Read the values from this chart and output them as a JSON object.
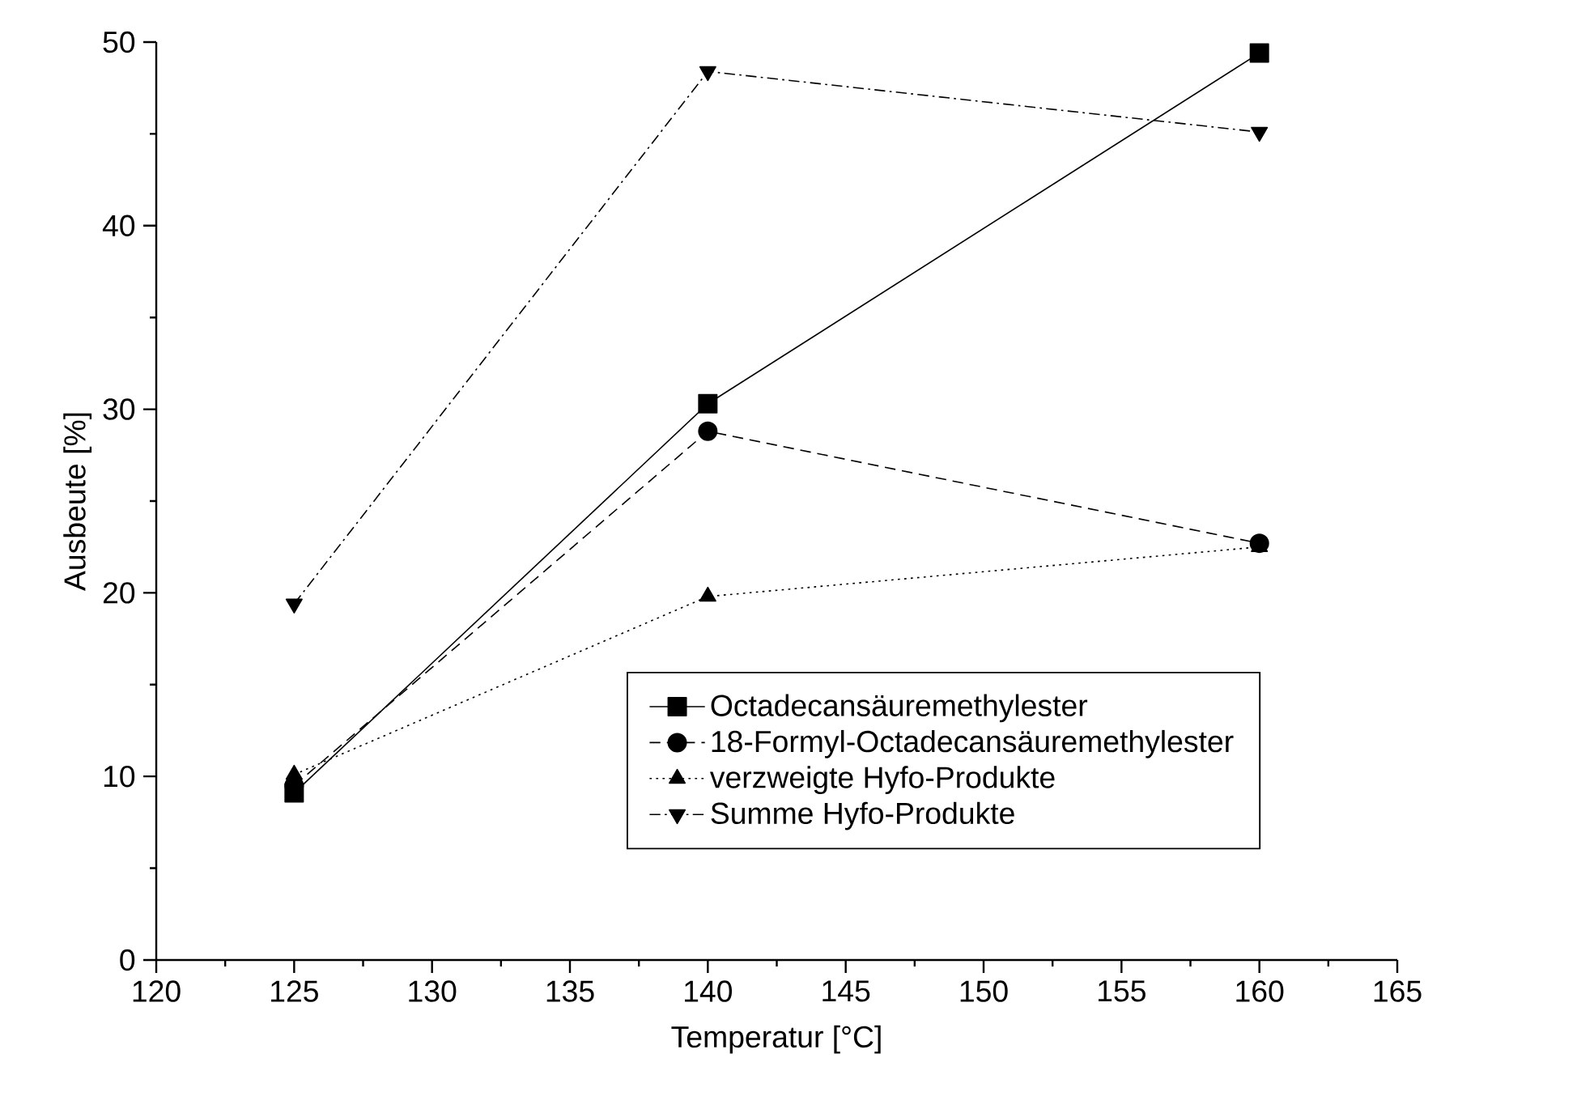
{
  "chart_data": {
    "type": "line",
    "xlabel": "Temperatur [°C]",
    "ylabel": "Ausbeute [%]",
    "x": [
      125,
      140,
      160
    ],
    "series": [
      {
        "name": "Octadecansäuremethylester",
        "color": "#000000",
        "values": [
          9.1,
          30.3,
          49.4
        ],
        "marker": "square",
        "line_style": "solid"
      },
      {
        "name": "18-Formyl-Octadecansäuremethylester",
        "color": "#000000",
        "values": [
          9.5,
          28.8,
          22.7
        ],
        "marker": "circle",
        "line_style": "dashed"
      },
      {
        "name": "verzweigte Hyfo-Produkte",
        "color": "#000000",
        "values": [
          10.1,
          19.8,
          22.5
        ],
        "marker": "triangle",
        "line_style": "dotted"
      },
      {
        "name": "Summe Hyfo-Produkte",
        "color": "#000000",
        "values": [
          19.4,
          48.4,
          45.1
        ],
        "marker": "triangle down",
        "line_style": "dashdotted"
      }
    ],
    "xlim": [
      120,
      165
    ],
    "ylim": [
      0,
      50
    ],
    "xticks": [
      120,
      125,
      130,
      135,
      140,
      145,
      150,
      155,
      160,
      165
    ],
    "yticks": [
      0,
      10,
      20,
      30,
      40,
      50
    ],
    "grid": false,
    "legend": "bottom right"
  }
}
